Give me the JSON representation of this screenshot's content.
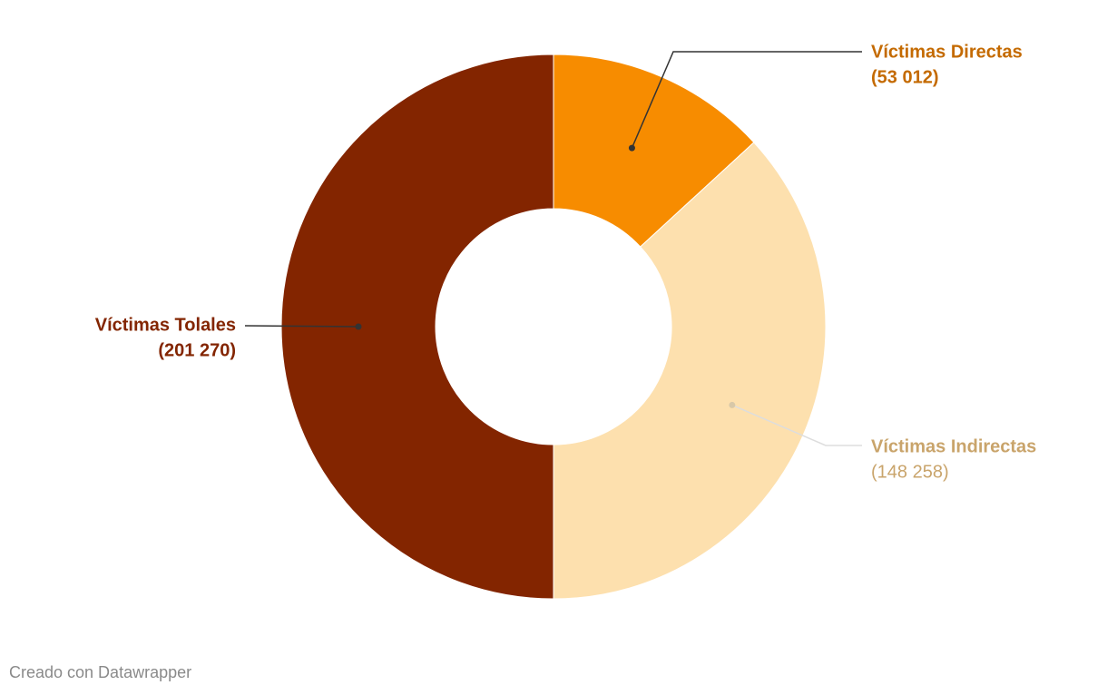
{
  "chart_data": {
    "type": "donut",
    "categories": [
      "Víctimas Directas",
      "Víctimas Indirectas",
      "Víctimas Tolales"
    ],
    "values": [
      53012,
      148258,
      201270
    ],
    "value_labels": [
      "(53 012)",
      "(148 258)",
      "(201 270)"
    ],
    "colors": [
      "#f78c00",
      "#fde0ae",
      "#832500"
    ],
    "label_colors": [
      "#c46a00",
      "#c9a46b",
      "#832500"
    ],
    "credit": "Creado con Datawrapper"
  }
}
